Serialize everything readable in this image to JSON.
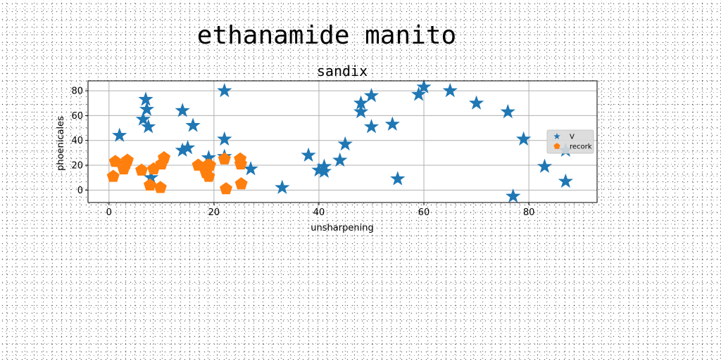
{
  "figure": {
    "title": "ethanamide manito"
  },
  "chart_data": {
    "type": "scatter",
    "title": "sandix",
    "xlabel": "unsharpening",
    "ylabel": "phoenicales",
    "xlim": [
      -4,
      93
    ],
    "ylim": [
      -10,
      88
    ],
    "xticks": [
      0,
      20,
      40,
      60,
      80
    ],
    "yticks": [
      0,
      20,
      40,
      60,
      80
    ],
    "grid": true,
    "legend_position": "right",
    "series": [
      {
        "name": "V",
        "marker": "star",
        "color": "#1f77b4",
        "x": [
          2,
          6.5,
          7,
          7.2,
          7.5,
          8,
          14,
          14,
          15,
          16,
          19,
          22,
          22,
          22,
          27,
          33,
          38,
          40,
          41,
          41,
          44,
          45,
          48,
          48,
          50,
          50,
          54,
          55,
          59,
          60,
          65,
          70,
          76,
          77,
          79,
          83,
          87,
          87
        ],
        "y": [
          44,
          57,
          73,
          65,
          51,
          10,
          64,
          32,
          34,
          52,
          26,
          80,
          41,
          27,
          17,
          2,
          28,
          16,
          19,
          15,
          24,
          37,
          70,
          63,
          76,
          51,
          53,
          9,
          77,
          83,
          80,
          70,
          63,
          -5,
          41,
          19,
          32,
          7
        ]
      },
      {
        "name": "recork",
        "marker": "pentagon",
        "color": "#ff7f0e",
        "x": [
          0.8,
          1.2,
          2.8,
          3.2,
          3.5,
          6.2,
          7.8,
          8.5,
          9.8,
          10.0,
          10.5,
          17,
          18.5,
          18.8,
          19,
          19.2,
          22,
          22.3,
          25,
          25.1,
          25.2
        ],
        "y": [
          11,
          23,
          17,
          21,
          24,
          16,
          4,
          17,
          2,
          21,
          26,
          20,
          14,
          20,
          11,
          20,
          25,
          1,
          25,
          21,
          5
        ]
      }
    ]
  },
  "colors": {
    "series_v": "#1f77b4",
    "series_recork": "#ff7f0e",
    "grid": "#b0b0b0",
    "axes": "#000000",
    "legend_bg": "#d9d9d9"
  }
}
